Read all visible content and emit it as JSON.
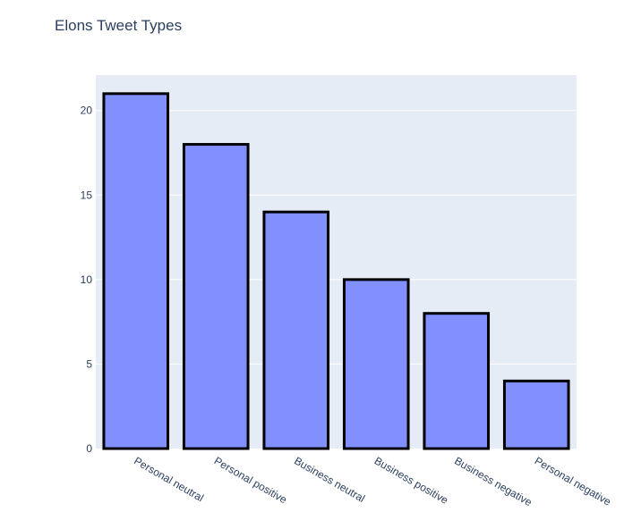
{
  "chart_data": {
    "type": "bar",
    "title": "Elons Tweet Types",
    "xlabel": "",
    "ylabel": "",
    "categories": [
      "Personal neutral",
      "Personal positive",
      "Business neutral",
      "Business positive",
      "Business negative",
      "Personal negative"
    ],
    "values": [
      21,
      18,
      14,
      10,
      8,
      4
    ],
    "ylim": [
      0,
      22.1
    ],
    "yticks": [
      0,
      5,
      10,
      15,
      20
    ],
    "grid": true,
    "colors": {
      "bar_fill": "#8190fd",
      "bar_outline": "#000000",
      "plot_background": "#e5ecf6",
      "grid": "#ffffff",
      "text": "#2a3f5f"
    }
  }
}
